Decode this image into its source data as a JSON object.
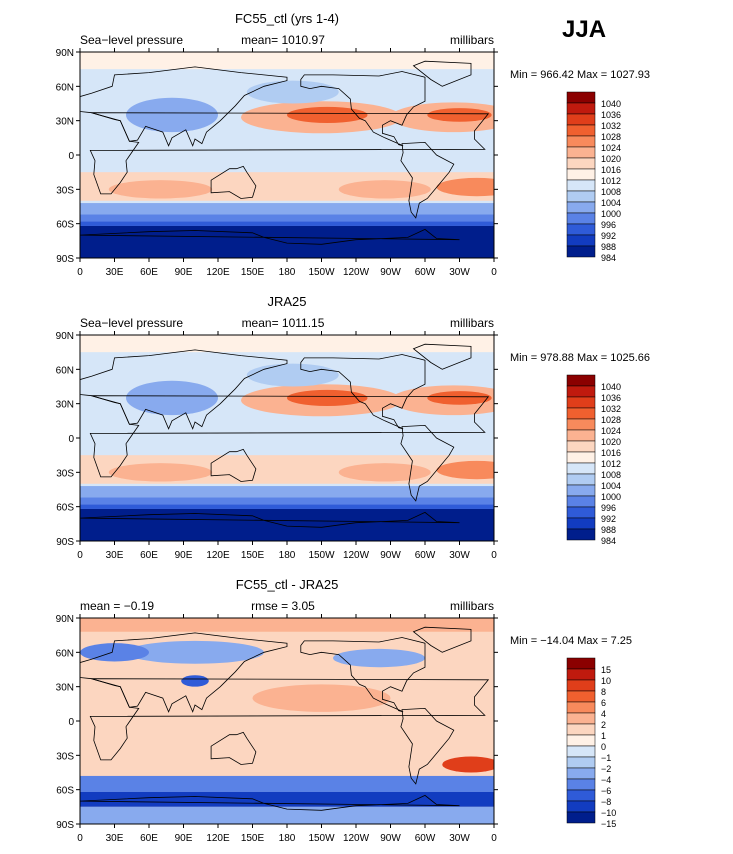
{
  "season_label": "JJA",
  "chart_data": [
    {
      "type": "heatmap",
      "title": "FC55_ctl (yrs 1-4)",
      "left_label": "Sea−level pressure",
      "center_label": "mean= 1010.97",
      "right_label": "millibars",
      "minmax_label": "Min = 966.42 Max = 1027.93",
      "x_ticks": [
        "0",
        "30E",
        "60E",
        "90E",
        "120E",
        "150E",
        "180",
        "150W",
        "120W",
        "90W",
        "60W",
        "30W",
        "0"
      ],
      "y_ticks": [
        "90N",
        "60N",
        "30N",
        "0",
        "30S",
        "60S",
        "90S"
      ],
      "legend_levels": [
        "1040",
        "1036",
        "1032",
        "1028",
        "1024",
        "1020",
        "1016",
        "1012",
        "1008",
        "1004",
        "1000",
        "996",
        "992",
        "988",
        "984"
      ],
      "legend_colors": [
        "#8b0000",
        "#c01a0e",
        "#e03e1a",
        "#f0602f",
        "#f88a5c",
        "#fbb291",
        "#fcd6c0",
        "#fff1e6",
        "#d6e6f8",
        "#b0ccf2",
        "#88aaee",
        "#5a82e6",
        "#2f5bd8",
        "#123cc0",
        "#001e8c"
      ]
    },
    {
      "type": "heatmap",
      "title": "JRA25",
      "left_label": "Sea−level pressure",
      "center_label": "mean= 1011.15",
      "right_label": "millibars",
      "minmax_label": "Min = 978.88 Max = 1025.66",
      "x_ticks": [
        "0",
        "30E",
        "60E",
        "90E",
        "120E",
        "150E",
        "180",
        "150W",
        "120W",
        "90W",
        "60W",
        "30W",
        "0"
      ],
      "y_ticks": [
        "90N",
        "60N",
        "30N",
        "0",
        "30S",
        "60S",
        "90S"
      ],
      "legend_levels": [
        "1040",
        "1036",
        "1032",
        "1028",
        "1024",
        "1020",
        "1016",
        "1012",
        "1008",
        "1004",
        "1000",
        "996",
        "992",
        "988",
        "984"
      ],
      "legend_colors": [
        "#8b0000",
        "#c01a0e",
        "#e03e1a",
        "#f0602f",
        "#f88a5c",
        "#fbb291",
        "#fcd6c0",
        "#fff1e6",
        "#d6e6f8",
        "#b0ccf2",
        "#88aaee",
        "#5a82e6",
        "#2f5bd8",
        "#123cc0",
        "#001e8c"
      ]
    },
    {
      "type": "heatmap",
      "title": "FC55_ctl - JRA25",
      "left_label": "mean =   −0.19",
      "center_label": "rmse =    3.05",
      "right_label": "millibars",
      "minmax_label": "Min = −14.04 Max =    7.25",
      "x_ticks": [
        "0",
        "30E",
        "60E",
        "90E",
        "120E",
        "150E",
        "180",
        "150W",
        "120W",
        "90W",
        "60W",
        "30W",
        "0"
      ],
      "y_ticks": [
        "90N",
        "60N",
        "30N",
        "0",
        "30S",
        "60S",
        "90S"
      ],
      "legend_levels": [
        "15",
        "10",
        "8",
        "6",
        "4",
        "2",
        "1",
        "0",
        "−1",
        "−2",
        "−4",
        "−6",
        "−8",
        "−10",
        "−15"
      ],
      "legend_colors": [
        "#8b0000",
        "#c01a0e",
        "#e03e1a",
        "#f0602f",
        "#f88a5c",
        "#fbb291",
        "#fcd6c0",
        "#fff1e6",
        "#d6e6f8",
        "#b0ccf2",
        "#88aaee",
        "#5a82e6",
        "#2f5bd8",
        "#123cc0",
        "#001e8c"
      ]
    }
  ]
}
